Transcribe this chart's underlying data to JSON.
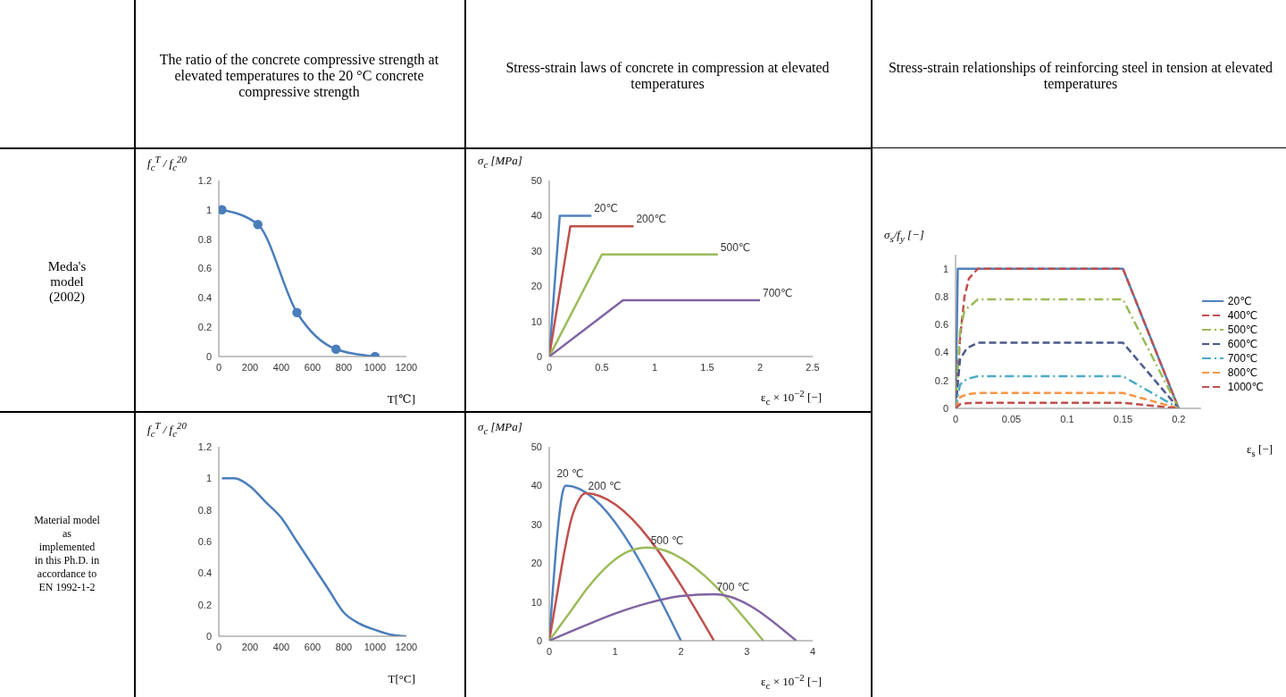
{
  "chart_data": [
    {
      "type": "other",
      "annotations": [
        "The ratio of the concrete compressive strength at elevated temperatures to the 20 °C concrete compressive strength",
        "Stress-strain laws of concrete in compression at elevated temperatures",
        "Stress-strain relationships of reinforcing steel in tension at elevated temperatures",
        "Meda's model (2002)",
        "Material model as implemented in this Ph.D. in accordance to EN 1992-1-2"
      ]
    },
    {
      "type": "line",
      "ylabel": "f$_{c}$$^{T}$ / f$_{c}$$^{20}$",
      "xlabel": "T[℃]",
      "xlim": [
        0,
        1200
      ],
      "xticks": [
        0,
        200,
        400,
        600,
        800,
        1000,
        1200
      ],
      "ylim": [
        0,
        1.2
      ],
      "yticks": [
        0,
        0.2,
        0.4,
        0.6,
        0.8,
        1,
        1.2
      ],
      "marker": "circle",
      "series": [
        {
          "color": "#4a7ebb",
          "x": [
            20,
            250,
            500,
            750,
            1000
          ],
          "values": [
            1,
            0.9,
            0.3,
            0.05,
            0
          ]
        }
      ]
    },
    {
      "type": "line",
      "ylabel": "σ$_{c}$ [MPa]",
      "xlabel": "ε$_{c}$ × 10$^{−2}$ [−]",
      "xlim": [
        0,
        2.5
      ],
      "xticks": [
        0,
        0.5,
        1,
        1.5,
        2,
        2.5
      ],
      "ylim": [
        0,
        50
      ],
      "yticks": [
        0,
        10,
        20,
        30,
        40,
        50
      ],
      "series": [
        {
          "name": "20℃",
          "color": "#4f81bd",
          "x": [
            0,
            0.1,
            0.4
          ],
          "values": [
            0,
            40,
            40
          ]
        },
        {
          "name": "200℃",
          "color": "#c0504d",
          "x": [
            0,
            0.2,
            0.8
          ],
          "values": [
            0,
            37,
            37
          ]
        },
        {
          "name": "500℃",
          "color": "#9bbb59",
          "x": [
            0,
            0.5,
            1.6
          ],
          "values": [
            0,
            29,
            29
          ]
        },
        {
          "name": "700℃",
          "color": "#8064a2",
          "x": [
            0,
            0.7,
            2
          ],
          "values": [
            0,
            16,
            16
          ]
        }
      ]
    },
    {
      "type": "line",
      "ylabel": "f$_{c}$$^{T}$ / f$_{c}$$^{20}$",
      "xlabel": "T[°C]",
      "xlim": [
        0,
        1200
      ],
      "xticks": [
        0,
        200,
        400,
        600,
        800,
        1000,
        1200
      ],
      "ylim": [
        0,
        1.2
      ],
      "yticks": [
        0,
        0.2,
        0.4,
        0.6,
        0.8,
        1,
        1.2
      ],
      "series": [
        {
          "color": "#4a7ebb",
          "x": [
            20,
            100,
            200,
            300,
            400,
            500,
            600,
            700,
            800,
            900,
            1000,
            1100,
            1200
          ],
          "values": [
            1,
            1,
            0.95,
            0.85,
            0.75,
            0.6,
            0.45,
            0.3,
            0.15,
            0.08,
            0.04,
            0.01,
            0
          ]
        }
      ]
    },
    {
      "type": "line",
      "ylabel": "σ$_{c}$ [MPa]",
      "xlabel": "ε$_{c}$ × 10$^{−2}$ [−]",
      "xlim": [
        0,
        4
      ],
      "xticks": [
        0,
        1,
        2,
        3,
        4
      ],
      "ylim": [
        0,
        50
      ],
      "yticks": [
        0,
        10,
        20,
        30,
        40,
        50
      ],
      "series": [
        {
          "name": "20 ℃",
          "color": "#4f81bd",
          "x": [
            0,
            0.05,
            0.1,
            0.15,
            0.2,
            0.25,
            2
          ],
          "values": [
            0,
            12,
            23,
            32,
            38,
            40,
            0
          ]
        },
        {
          "name": "200 ℃",
          "color": "#c0504d",
          "x": [
            0,
            0.11,
            0.22,
            0.33,
            0.44,
            0.55,
            2.5
          ],
          "values": [
            0,
            11,
            22,
            31,
            36,
            38,
            0
          ]
        },
        {
          "name": "500 ℃",
          "color": "#9bbb59",
          "x": [
            0,
            0.3,
            0.6,
            0.9,
            1.2,
            1.5,
            3.25
          ],
          "values": [
            0,
            7,
            14,
            19.5,
            23,
            24,
            0
          ]
        },
        {
          "name": "700 ℃",
          "color": "#8064a2",
          "x": [
            0,
            0.5,
            1,
            1.5,
            2,
            2.5,
            3.75
          ],
          "values": [
            0,
            3.6,
            7,
            9.7,
            11.5,
            12,
            0
          ]
        }
      ]
    },
    {
      "type": "line",
      "ylabel": "σ$_{s}$/f$_{y}$ [−]",
      "xlabel": "ε$_{s}$ [−]",
      "xlim": [
        0,
        0.22
      ],
      "xticks": [
        0,
        0.05,
        0.1,
        0.15,
        0.2
      ],
      "ylim": [
        0,
        1.1
      ],
      "yticks": [
        0,
        0.2,
        0.4,
        0.6,
        0.8,
        1
      ],
      "legend": "right",
      "series": [
        {
          "name": "20℃",
          "color": "#4f81bd",
          "line_style": "solid",
          "x": [
            0,
            0.002,
            0.15,
            0.2
          ],
          "values": [
            0,
            1,
            1,
            0
          ]
        },
        {
          "name": "400℃",
          "color": "#c0504d",
          "line_style": "dashed",
          "x": [
            0,
            0.004,
            0.008,
            0.012,
            0.02,
            0.15,
            0.2
          ],
          "values": [
            0,
            0.5,
            0.8,
            0.93,
            1,
            1,
            0
          ]
        },
        {
          "name": "500℃",
          "color": "#9bbb59",
          "line_style": "dashdot",
          "x": [
            0,
            0.004,
            0.008,
            0.02,
            0.15,
            0.2
          ],
          "values": [
            0,
            0.55,
            0.7,
            0.78,
            0.78,
            0
          ]
        },
        {
          "name": "600℃",
          "color": "#4a5a8c",
          "line_style": "dashed",
          "x": [
            0,
            0.004,
            0.01,
            0.02,
            0.15,
            0.2
          ],
          "values": [
            0,
            0.35,
            0.43,
            0.47,
            0.47,
            0
          ]
        },
        {
          "name": "700℃",
          "color": "#4bacc6",
          "line_style": "dashdot",
          "x": [
            0,
            0.004,
            0.01,
            0.02,
            0.15,
            0.2
          ],
          "values": [
            0,
            0.17,
            0.21,
            0.23,
            0.23,
            0
          ]
        },
        {
          "name": "800℃",
          "color": "#f79646",
          "line_style": "dashed",
          "x": [
            0,
            0.004,
            0.01,
            0.02,
            0.15,
            0.2
          ],
          "values": [
            0,
            0.08,
            0.1,
            0.11,
            0.11,
            0
          ]
        },
        {
          "name": "1000℃",
          "color": "#c0504d",
          "line_style": "dashed",
          "x": [
            0,
            0.004,
            0.01,
            0.02,
            0.15,
            0.2
          ],
          "values": [
            0,
            0.03,
            0.037,
            0.04,
            0.04,
            0
          ]
        }
      ]
    }
  ]
}
